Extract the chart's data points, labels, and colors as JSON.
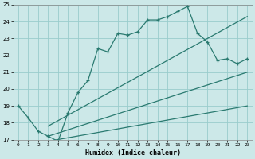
{
  "xlabel": "Humidex (Indice chaleur)",
  "bg_color": "#cce8e8",
  "grid_color": "#99cccc",
  "line_color": "#2a7a70",
  "xlim": [
    -0.5,
    23.5
  ],
  "ylim": [
    17,
    25
  ],
  "xticks": [
    0,
    1,
    2,
    3,
    4,
    5,
    6,
    7,
    8,
    9,
    10,
    11,
    12,
    13,
    14,
    15,
    16,
    17,
    18,
    19,
    20,
    21,
    22,
    23
  ],
  "yticks": [
    17,
    18,
    19,
    20,
    21,
    22,
    23,
    24,
    25
  ],
  "main_x": [
    0,
    1,
    2,
    3,
    4,
    5,
    6,
    7,
    8,
    9,
    10,
    11,
    12,
    13,
    14,
    15,
    16,
    17,
    18,
    19,
    20,
    21,
    22,
    23
  ],
  "main_y": [
    19.0,
    18.3,
    17.5,
    17.2,
    16.9,
    18.6,
    19.8,
    20.5,
    22.4,
    22.2,
    23.3,
    23.2,
    23.4,
    24.1,
    24.1,
    24.3,
    24.6,
    24.9,
    23.3,
    22.8,
    21.7,
    21.8,
    21.5,
    21.8
  ],
  "line1_x": [
    3,
    23
  ],
  "line1_y": [
    17.8,
    24.3
  ],
  "line2_x": [
    3,
    23
  ],
  "line2_y": [
    17.2,
    21.0
  ],
  "line3_x": [
    3,
    23
  ],
  "line3_y": [
    16.9,
    19.0
  ],
  "marker": "+"
}
